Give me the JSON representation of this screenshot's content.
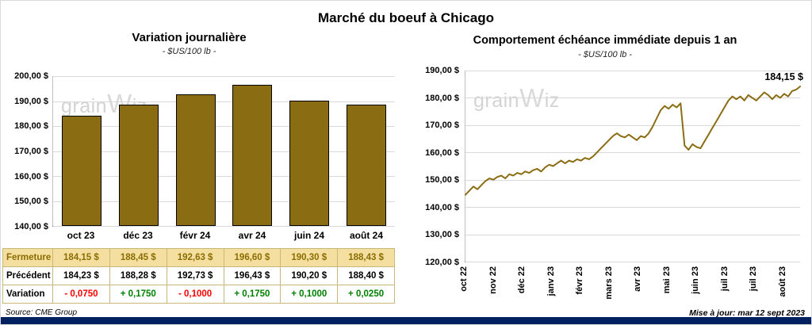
{
  "page_title": "Marché du boeuf à Chicago",
  "watermark": {
    "pre": "grain",
    "w": "W",
    "post": "iz"
  },
  "footer": {
    "source": "Source: CME Group",
    "updated": "Mise à jour: mar 12 sept 2023"
  },
  "colors": {
    "gold": "#8a6d13",
    "highlight_bg": "#f5dfa0",
    "highlight_text": "#8a6d00",
    "negative": "#ff0000",
    "positive": "#008000",
    "navy": "#002060",
    "gridline": "#d9d9d9"
  },
  "chart_data": [
    {
      "type": "bar",
      "title": "Variation journalière",
      "subtitle": "- $US/100 lb -",
      "categories": [
        "oct 23",
        "déc 23",
        "févr 24",
        "avr 24",
        "juin 24",
        "août 24"
      ],
      "values": [
        184.15,
        188.45,
        192.63,
        196.6,
        190.3,
        188.43
      ],
      "ylim": [
        140,
        200
      ],
      "yticks": [
        "200,00 $",
        "190,00 $",
        "180,00 $",
        "170,00 $",
        "160,00 $",
        "150,00 $",
        "140,00 $"
      ],
      "table": {
        "rows": [
          {
            "key": "fermeture",
            "label": "Fermeture",
            "values": [
              "184,15 $",
              "188,45 $",
              "192,63 $",
              "196,60 $",
              "190,30 $",
              "188,43 $"
            ]
          },
          {
            "key": "precedent",
            "label": "Précédent",
            "values": [
              "184,23 $",
              "188,28 $",
              "192,73 $",
              "196,43 $",
              "190,20 $",
              "188,40 $"
            ]
          },
          {
            "key": "variation",
            "label": "Variation",
            "values": [
              "- 0,0750",
              "+ 0,1750",
              "- 0,1000",
              "+ 0,1750",
              "+ 0,1000",
              "+ 0,0250"
            ]
          }
        ]
      }
    },
    {
      "type": "line",
      "title": "Comportement échéance immédiate depuis 1 an",
      "subtitle": "- $US/100 lb -",
      "x_labels": [
        "oct 22",
        "nov 22",
        "déc 22",
        "janv 23",
        "févr 23",
        "mars 23",
        "avr 23",
        "mai 23",
        "juin 23",
        "juil 23",
        "juil 23",
        "août 23"
      ],
      "ylim": [
        120,
        190
      ],
      "yticks": [
        "190,00 $",
        "180,00 $",
        "170,00 $",
        "160,00 $",
        "150,00 $",
        "140,00 $",
        "130,00 $",
        "120,00 $"
      ],
      "annotation": "184,15 $",
      "values": [
        144.5,
        146.0,
        147.5,
        146.5,
        148.0,
        149.5,
        150.5,
        150.0,
        151.0,
        151.5,
        150.5,
        152.0,
        151.5,
        152.5,
        152.0,
        153.0,
        152.5,
        153.5,
        154.0,
        153.0,
        154.5,
        155.5,
        155.0,
        156.0,
        157.0,
        156.0,
        157.0,
        156.5,
        157.5,
        157.0,
        158.0,
        157.5,
        158.5,
        160.0,
        161.5,
        163.0,
        164.5,
        166.0,
        167.0,
        166.0,
        165.5,
        166.5,
        165.5,
        164.5,
        166.0,
        165.5,
        167.0,
        169.5,
        172.5,
        175.5,
        177.0,
        176.0,
        177.5,
        176.5,
        178.0,
        162.5,
        161.0,
        163.0,
        162.0,
        161.5,
        164.0,
        166.5,
        169.0,
        171.5,
        174.0,
        176.5,
        179.0,
        180.5,
        179.5,
        180.5,
        179.0,
        181.0,
        180.0,
        179.0,
        180.5,
        182.0,
        181.0,
        179.5,
        181.0,
        180.0,
        181.5,
        180.5,
        182.5,
        183.0,
        184.15
      ]
    }
  ]
}
